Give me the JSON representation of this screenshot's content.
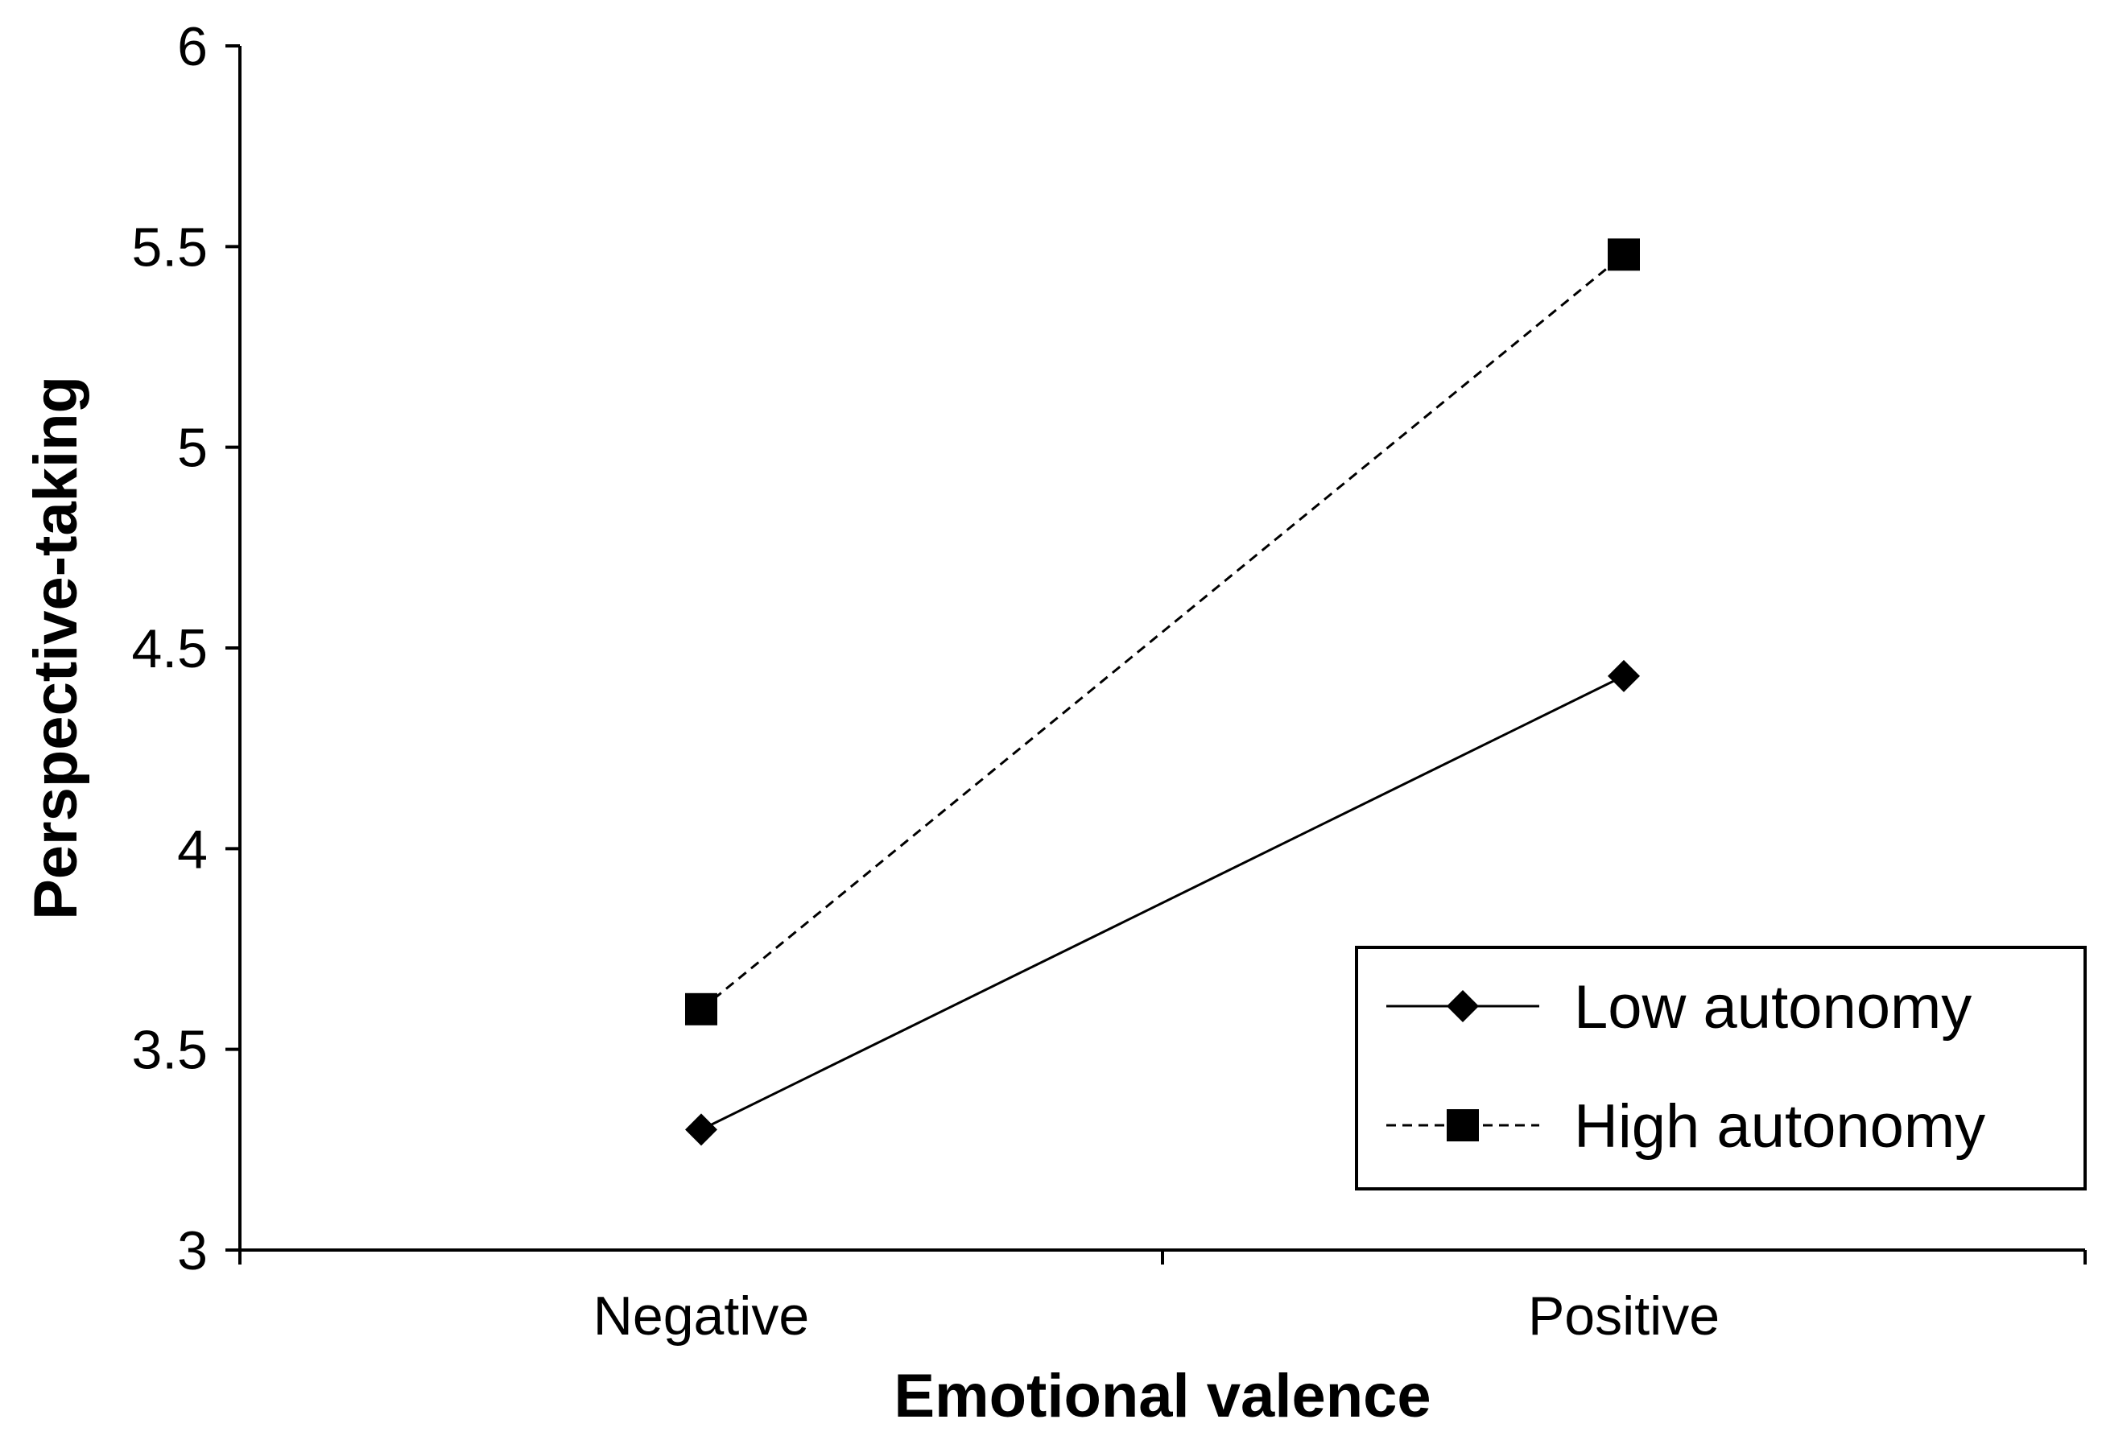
{
  "chart_data": {
    "type": "line",
    "title": "",
    "xlabel": "Emotional valence",
    "ylabel": "Perspective-taking",
    "categories": [
      "Negative",
      "Positive"
    ],
    "ylim": [
      3,
      6
    ],
    "yticks": [
      "3",
      "3.5",
      "4",
      "4.5",
      "5",
      "5.5",
      "6"
    ],
    "grid": false,
    "legend_position": "bottom-right",
    "series": [
      {
        "name": "Low autonomy",
        "values": [
          3.3,
          4.43
        ],
        "marker": "diamond",
        "line_style": "solid",
        "color": "#000000"
      },
      {
        "name": "High autonomy",
        "values": [
          3.6,
          5.48
        ],
        "marker": "square",
        "line_style": "dashed",
        "color": "#000000"
      }
    ]
  }
}
